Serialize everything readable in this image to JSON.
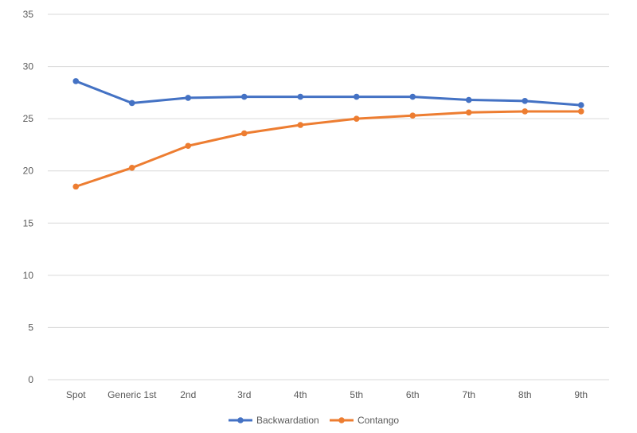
{
  "chart_data": {
    "type": "line",
    "title": "",
    "xlabel": "",
    "ylabel": "",
    "categories": [
      "Spot",
      "Generic 1st",
      "2nd",
      "3rd",
      "4th",
      "5th",
      "6th",
      "7th",
      "8th",
      "9th"
    ],
    "ylim": [
      0,
      35
    ],
    "yticks": [
      0,
      5,
      10,
      15,
      20,
      25,
      30,
      35
    ],
    "grid": true,
    "legend_position": "bottom",
    "series": [
      {
        "name": "Backwardation",
        "color": "#4472C4",
        "values": [
          28.6,
          26.5,
          27.0,
          27.1,
          27.1,
          27.1,
          27.1,
          26.8,
          26.7,
          26.3
        ]
      },
      {
        "name": "Contango",
        "color": "#ED7D31",
        "values": [
          18.5,
          20.3,
          22.4,
          23.6,
          24.4,
          25.0,
          25.3,
          25.6,
          25.7,
          25.7
        ]
      }
    ]
  }
}
